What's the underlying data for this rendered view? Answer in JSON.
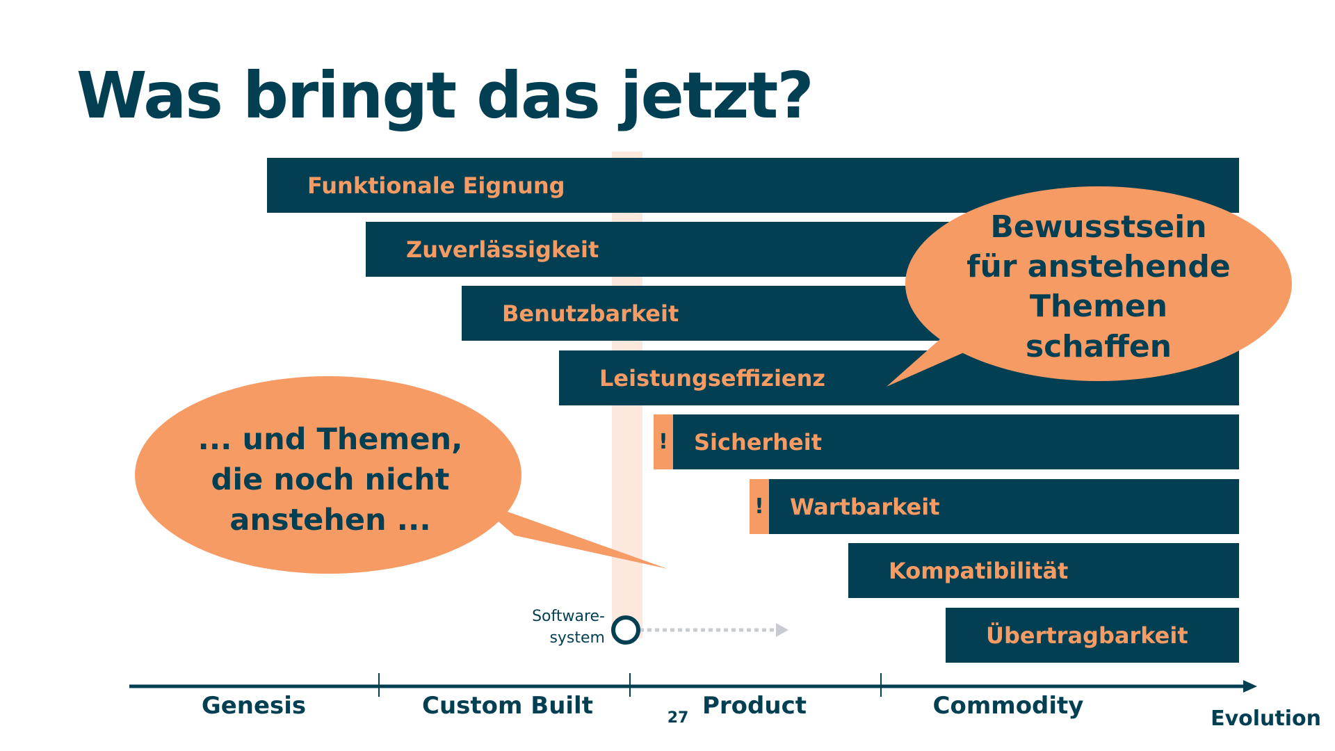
{
  "title": "Was bringt das jetzt?",
  "quality_bars": [
    {
      "label": "Funktionale Eignung",
      "flag": ""
    },
    {
      "label": "Zuverlässigkeit",
      "flag": ""
    },
    {
      "label": "Benutzbarkeit",
      "flag": ""
    },
    {
      "label": "Leistungseffizienz",
      "flag": ""
    },
    {
      "label": "Sicherheit",
      "flag": "!"
    },
    {
      "label": "Wartbarkeit",
      "flag": "!"
    },
    {
      "label": "Kompatibilität",
      "flag": ""
    },
    {
      "label": "Übertragbarkeit",
      "flag": ""
    }
  ],
  "bubble_right": {
    "line1": "Bewusstsein",
    "line2": "für anstehende",
    "line3": "Themen",
    "line4": "schaffen"
  },
  "bubble_left": {
    "line1": "... und Themen,",
    "line2": "die noch nicht",
    "line3": "anstehen ..."
  },
  "marker": {
    "line1": "Software-",
    "line2": "system"
  },
  "stages": [
    "Genesis",
    "Custom Built",
    "Product",
    "Commodity"
  ],
  "axis_label": "Evolution",
  "page_number": "27",
  "colors": {
    "navy": "#033f52",
    "orange": "#f79b65",
    "band": "#fde8de",
    "arrow_gray": "#c8ccd0"
  }
}
